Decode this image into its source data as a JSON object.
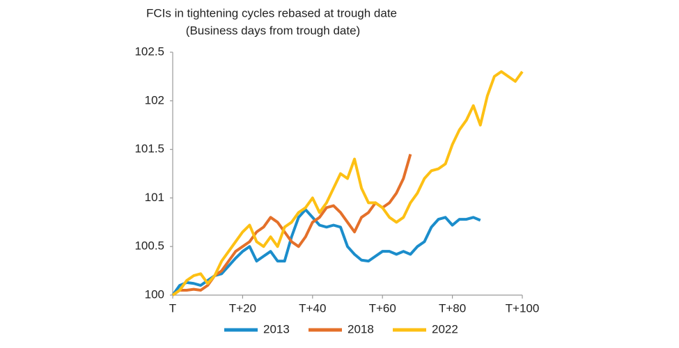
{
  "chart_data": {
    "type": "line",
    "title": "FCIs in tightening cycles rebased at trough date",
    "subtitle": "(Business days from trough date)",
    "x": [
      0,
      2,
      4,
      6,
      8,
      10,
      12,
      14,
      16,
      18,
      20,
      22,
      24,
      26,
      28,
      30,
      32,
      34,
      36,
      38,
      40,
      42,
      44,
      46,
      48,
      50,
      52,
      54,
      56,
      58,
      60,
      62,
      64,
      66,
      68,
      70,
      72,
      74,
      76,
      78,
      80,
      82,
      84,
      86,
      88,
      90,
      92,
      94,
      96,
      98,
      100
    ],
    "series": [
      {
        "name": "2013",
        "color": "#1b8dcb",
        "values": [
          100.0,
          100.1,
          100.13,
          100.12,
          100.1,
          100.15,
          100.2,
          100.22,
          100.3,
          100.38,
          100.45,
          100.5,
          100.35,
          100.4,
          100.45,
          100.35,
          100.35,
          100.6,
          100.8,
          100.88,
          100.8,
          100.72,
          100.7,
          100.72,
          100.7,
          100.5,
          100.42,
          100.36,
          100.35,
          100.4,
          100.45,
          100.45,
          100.42,
          100.45,
          100.42,
          100.5,
          100.55,
          100.7,
          100.78,
          100.8,
          100.72,
          100.78,
          100.78,
          100.8,
          100.77,
          null,
          null,
          null,
          null,
          null,
          null
        ]
      },
      {
        "name": "2018",
        "color": "#e4702a",
        "values": [
          100.0,
          100.05,
          100.05,
          100.06,
          100.05,
          100.1,
          100.2,
          100.25,
          100.35,
          100.45,
          100.5,
          100.55,
          100.65,
          100.7,
          100.8,
          100.75,
          100.65,
          100.55,
          100.5,
          100.6,
          100.75,
          100.8,
          100.9,
          100.92,
          100.85,
          100.75,
          100.65,
          100.8,
          100.85,
          100.95,
          100.9,
          100.95,
          101.05,
          101.2,
          101.45,
          null,
          null,
          null,
          null,
          null,
          null,
          null,
          null,
          null,
          null,
          null,
          null,
          null,
          null,
          null,
          null
        ]
      },
      {
        "name": "2022",
        "color": "#fdc014",
        "values": [
          100.0,
          100.05,
          100.15,
          100.2,
          100.22,
          100.12,
          100.2,
          100.35,
          100.45,
          100.55,
          100.65,
          100.72,
          100.55,
          100.5,
          100.6,
          100.5,
          100.7,
          100.75,
          100.85,
          100.9,
          101.0,
          100.85,
          100.95,
          101.1,
          101.25,
          101.2,
          101.4,
          101.1,
          100.95,
          100.95,
          100.9,
          100.8,
          100.75,
          100.8,
          100.95,
          101.05,
          101.2,
          101.28,
          101.3,
          101.35,
          101.55,
          101.7,
          101.8,
          101.95,
          101.75,
          102.05,
          102.25,
          102.3,
          102.25,
          102.2,
          102.3
        ]
      }
    ],
    "xlim": [
      0,
      100
    ],
    "xticks": [
      {
        "value": 0,
        "label": "T"
      },
      {
        "value": 20,
        "label": "T+20"
      },
      {
        "value": 40,
        "label": "T+40"
      },
      {
        "value": 60,
        "label": "T+60"
      },
      {
        "value": 80,
        "label": "T+80"
      },
      {
        "value": 100,
        "label": "T+100"
      }
    ],
    "ylim": [
      100,
      102.5
    ],
    "yticks": [
      100,
      100.5,
      101,
      101.5,
      102,
      102.5
    ],
    "grid": false,
    "legend": "bottom"
  }
}
